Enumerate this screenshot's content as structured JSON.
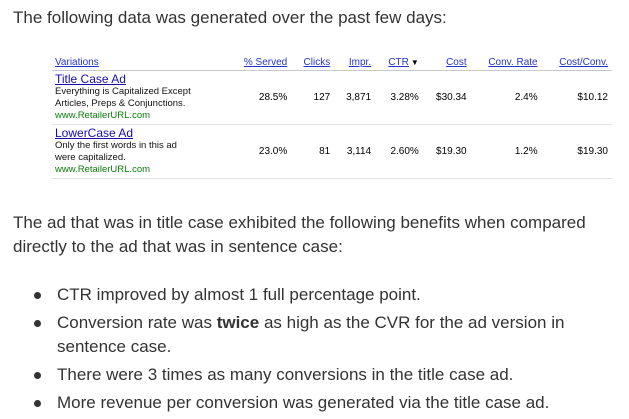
{
  "intro": "The following data was generated over the past few days:",
  "table": {
    "headers": [
      "Variations",
      "% Served",
      "Clicks",
      "Impr.",
      "CTR",
      "Cost",
      "Conv. Rate",
      "Cost/Conv."
    ],
    "sort_arrow": "▼",
    "rows": [
      {
        "ad_title": "Title Case Ad",
        "ad_line1": "Everything is Capitalized Except",
        "ad_line2": "Articles, Preps & Conjunctions.",
        "ad_url": "www.RetailerURL.com",
        "values": [
          "28.5%",
          "127",
          "3,871",
          "3.28%",
          "$30.34",
          "2.4%",
          "$10.12"
        ]
      },
      {
        "ad_title": "LowerCase Ad",
        "ad_line1": "Only the first words in this ad",
        "ad_line2": "were capitalized.",
        "ad_url": "www.RetailerURL.com",
        "values": [
          "23.0%",
          "81",
          "3,114",
          "2.60%",
          "$19.30",
          "1.2%",
          "$19.30"
        ]
      }
    ]
  },
  "section": "The ad that was in title case exhibited the following benefits when compared directly to the ad that was in sentence case:",
  "bullets": [
    {
      "pre": "CTR improved by almost 1 full percentage point.",
      "bold": "",
      "post": ""
    },
    {
      "pre": "Conversion rate was ",
      "bold": "twice",
      "post": " as high as the CVR for the ad version in sentence case."
    },
    {
      "pre": "There were 3 times as many conversions in the title case ad.",
      "bold": "",
      "post": ""
    },
    {
      "pre": "More revenue per conversion was generated via the title case ad.",
      "bold": "",
      "post": ""
    }
  ]
}
